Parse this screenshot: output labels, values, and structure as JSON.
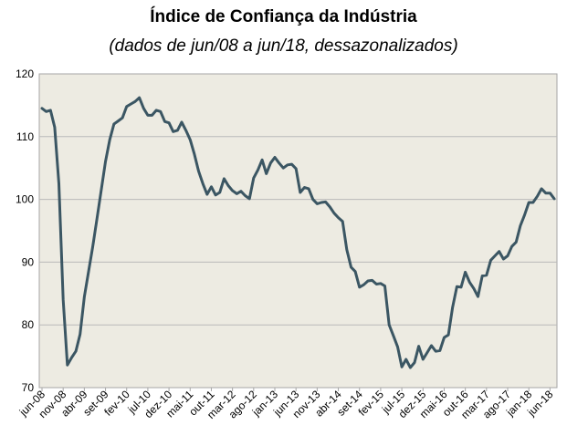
{
  "chart_data": {
    "type": "line",
    "title": "Índice de Confiança da Indústria",
    "subtitle": "(dados de jun/08 a jun/18, dessazonalizados)",
    "xlabel": "",
    "ylabel": "",
    "ylim": [
      70,
      120
    ],
    "yticks": [
      70,
      80,
      90,
      100,
      110,
      120
    ],
    "grid": true,
    "legend": "none",
    "colors": {
      "line": "#3b5663",
      "plot_bg": "#edebe2",
      "grid": "#b9b9b9"
    },
    "xtick_labels": [
      "jun-08",
      "nov-08",
      "abr-09",
      "set-09",
      "fev-10",
      "jul-10",
      "dez-10",
      "mai-11",
      "out-11",
      "mar-12",
      "ago-12",
      "jan-13",
      "jun-13",
      "nov-13",
      "abr-14",
      "set-14",
      "fev-15",
      "jul-15",
      "dez-15",
      "mai-16",
      "out-16",
      "mar-17",
      "ago-17",
      "jan-18",
      "jun-18"
    ],
    "series": [
      {
        "values": [
          114.5,
          114.0,
          114.2,
          111.5,
          102.5,
          84.0,
          73.6,
          74.8,
          75.8,
          78.5,
          84.5,
          88.5,
          92.5,
          97.0,
          101.5,
          106.0,
          109.5,
          112.0,
          112.5,
          113.0,
          114.8,
          115.2,
          115.6,
          116.2,
          114.5,
          113.4,
          113.4,
          114.2,
          114.0,
          112.4,
          112.2,
          110.8,
          111.0,
          112.3,
          111.0,
          109.5,
          107.2,
          104.5,
          102.5,
          100.8,
          102.0,
          100.7,
          101.1,
          103.3,
          102.2,
          101.4,
          100.9,
          101.3,
          100.6,
          100.1,
          103.4,
          104.7,
          106.3,
          104.1,
          105.8,
          106.7,
          105.8,
          105.0,
          105.5,
          105.6,
          104.9,
          101.1,
          101.9,
          101.7,
          100.0,
          99.3,
          99.5,
          99.6,
          98.8,
          97.8,
          97.1,
          96.5,
          92.0,
          89.2,
          88.5,
          86.0,
          86.4,
          87.0,
          87.1,
          86.5,
          86.6,
          86.2,
          80.0,
          78.3,
          76.5,
          73.3,
          74.5,
          73.2,
          74.0,
          76.6,
          74.5,
          75.6,
          76.7,
          75.8,
          75.9,
          78.0,
          78.4,
          82.8,
          86.1,
          86.0,
          88.4,
          86.8,
          85.8,
          84.5,
          87.8,
          87.9,
          90.3,
          91.0,
          91.7,
          90.5,
          91.0,
          92.5,
          93.2,
          95.8,
          97.5,
          99.5,
          99.5,
          100.5,
          101.7,
          101.0,
          101.0,
          100.1
        ]
      }
    ]
  }
}
